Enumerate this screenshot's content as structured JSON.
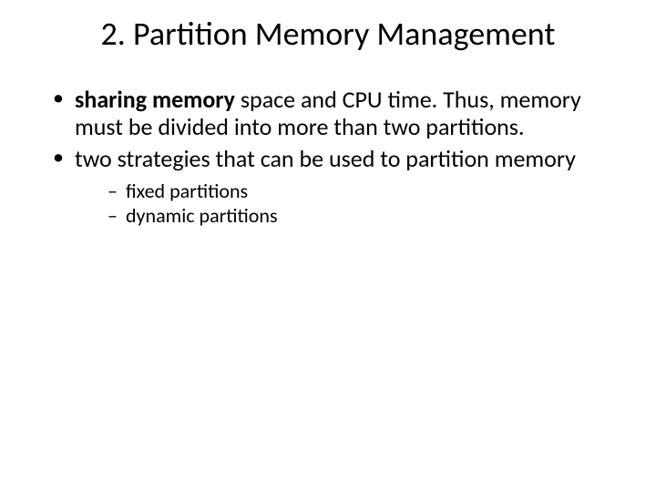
{
  "slide": {
    "title": "2. Partition Memory Management",
    "title_fontsize": 36,
    "background_color": "#ffffff",
    "text_color": "#000000",
    "bullets": [
      {
        "bold_lead": "sharing memory",
        "rest": " space and CPU time. Thus, memory must be divided into more than two partitions.",
        "fontsize": 26
      },
      {
        "bold_lead": "",
        "rest": "two strategies that can be used to partition memory",
        "fontsize": 26,
        "sub": [
          {
            "text": "fixed partitions",
            "fontsize": 22
          },
          {
            "text": "dynamic partitions",
            "fontsize": 22
          }
        ]
      }
    ]
  }
}
